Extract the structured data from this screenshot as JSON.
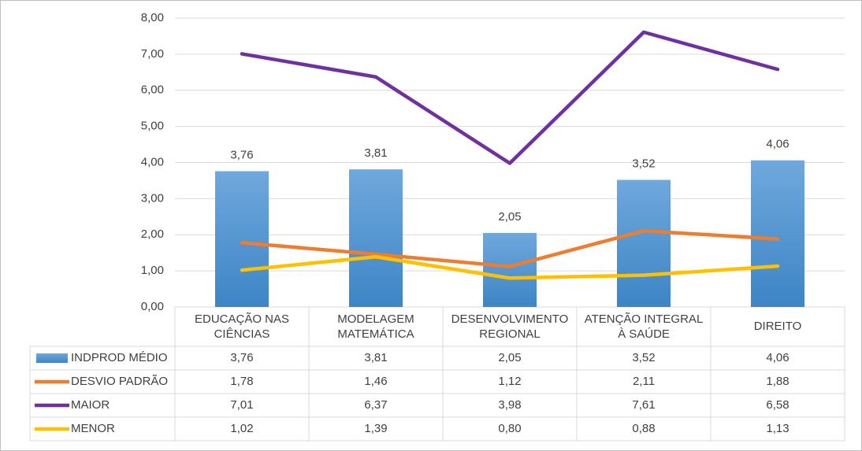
{
  "chart_data": {
    "type": "combo",
    "categories": [
      "EDUCAÇÃO NAS CIÊNCIAS",
      "MODELAGEM MATEMÁTICA",
      "DESENVOLVIMENTO REGIONAL",
      "ATENÇÃO INTEGRAL À SAÚDE",
      "DIREITO"
    ],
    "series": [
      {
        "name": "INDPROD MÉDIO",
        "type": "bar",
        "color": "#5b9bd5",
        "data_labels": true,
        "values": [
          3.76,
          3.81,
          2.05,
          3.52,
          4.06
        ],
        "value_labels": [
          "3,76",
          "3,81",
          "2,05",
          "3,52",
          "4,06"
        ]
      },
      {
        "name": "DESVIO PADRÃO",
        "type": "line",
        "color": "#ed7d31",
        "values": [
          1.78,
          1.46,
          1.12,
          2.11,
          1.88
        ],
        "value_labels": [
          "1,78",
          "1,46",
          "1,12",
          "2,11",
          "1,88"
        ]
      },
      {
        "name": "MAIOR",
        "type": "line",
        "color": "#7030a0",
        "values": [
          7.01,
          6.37,
          3.98,
          7.61,
          6.58
        ],
        "value_labels": [
          "7,01",
          "6,37",
          "3,98",
          "7,61",
          "6,58"
        ]
      },
      {
        "name": "MENOR",
        "type": "line",
        "color": "#ffc000",
        "values": [
          1.02,
          1.39,
          0.8,
          0.88,
          1.13
        ],
        "value_labels": [
          "1,02",
          "1,39",
          "0,80",
          "0,88",
          "1,13"
        ]
      }
    ],
    "ylim": [
      0,
      8
    ],
    "yticks": [
      {
        "value": 0,
        "label": "0,00"
      },
      {
        "value": 1,
        "label": "1,00"
      },
      {
        "value": 2,
        "label": "2,00"
      },
      {
        "value": 3,
        "label": "3,00"
      },
      {
        "value": 4,
        "label": "4,00"
      },
      {
        "value": 5,
        "label": "5,00"
      },
      {
        "value": 6,
        "label": "6,00"
      },
      {
        "value": 7,
        "label": "7,00"
      },
      {
        "value": 8,
        "label": "8,00"
      }
    ],
    "grid": true,
    "data_table": true
  }
}
